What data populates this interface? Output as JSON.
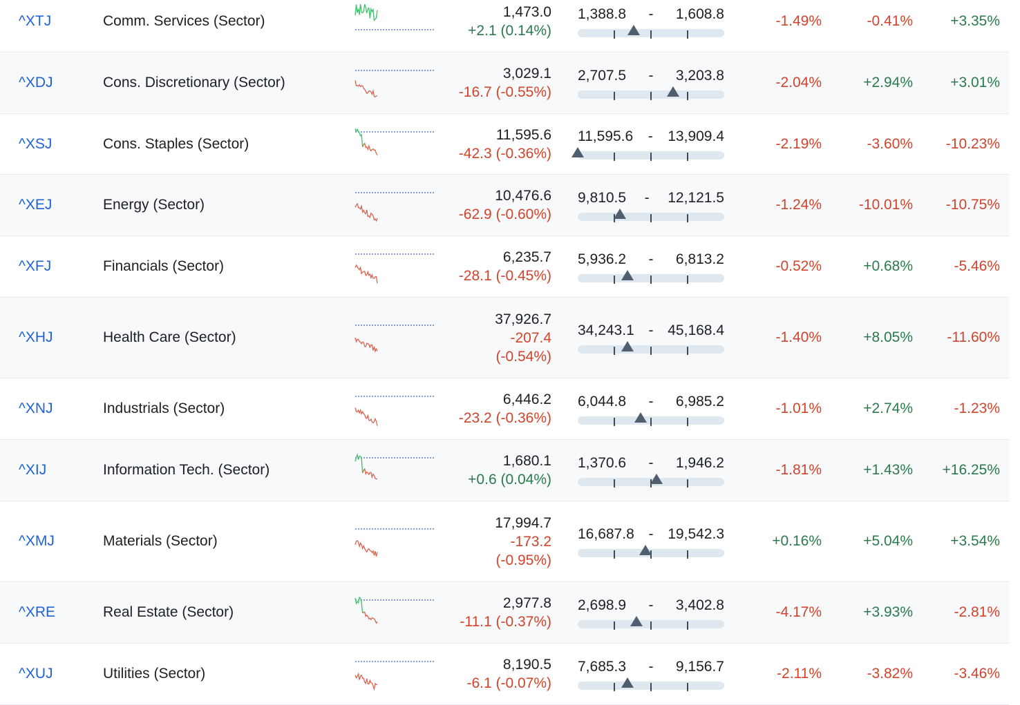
{
  "rows": [
    {
      "symbol": "^XTJ",
      "name": "Comm. Services (Sector)",
      "last": "1,473.0",
      "change": "+2.1 (0.14%)",
      "change_dir": "pos",
      "range_low": "1,388.8",
      "range_sep": "-",
      "range_high": "1,608.8",
      "range_position": 0.38,
      "pct_1": "-1.49%",
      "pct_2": "-0.41%",
      "pct_3": "+3.35%",
      "spark_trend": "up"
    },
    {
      "symbol": "^XDJ",
      "name": "Cons. Discretionary (Sector)",
      "last": "3,029.1",
      "change": "-16.7 (-0.55%)",
      "change_dir": "neg",
      "range_low": "2,707.5",
      "range_sep": "-",
      "range_high": "3,203.8",
      "range_position": 0.65,
      "pct_1": "-2.04%",
      "pct_2": "+2.94%",
      "pct_3": "+3.01%",
      "spark_trend": "down"
    },
    {
      "symbol": "^XSJ",
      "name": "Cons. Staples (Sector)",
      "last": "11,595.6",
      "change": "-42.3 (-0.36%)",
      "change_dir": "neg",
      "range_low": "11,595.6",
      "range_sep": "-",
      "range_high": "13,909.4",
      "range_position": 0.0,
      "pct_1": "-2.19%",
      "pct_2": "-3.60%",
      "pct_3": "-10.23%",
      "spark_trend": "mixed"
    },
    {
      "symbol": "^XEJ",
      "name": "Energy (Sector)",
      "last": "10,476.6",
      "change": "-62.9 (-0.60%)",
      "change_dir": "neg",
      "range_low": "9,810.5",
      "range_sep": "-",
      "range_high": "12,121.5",
      "range_position": 0.29,
      "pct_1": "-1.24%",
      "pct_2": "-10.01%",
      "pct_3": "-10.75%",
      "spark_trend": "down"
    },
    {
      "symbol": "^XFJ",
      "name": "Financials (Sector)",
      "last": "6,235.7",
      "change": "-28.1 (-0.45%)",
      "change_dir": "neg",
      "range_low": "5,936.2",
      "range_sep": "-",
      "range_high": "6,813.2",
      "range_position": 0.34,
      "pct_1": "-0.52%",
      "pct_2": "+0.68%",
      "pct_3": "-5.46%",
      "spark_trend": "down"
    },
    {
      "symbol": "^XHJ",
      "name": "Health Care (Sector)",
      "last": "37,926.7",
      "change": "-207.4 (-0.54%)",
      "change_dir": "neg",
      "range_low": "34,243.1",
      "range_sep": "-",
      "range_high": "45,168.4",
      "range_position": 0.34,
      "pct_1": "-1.40%",
      "pct_2": "+8.05%",
      "pct_3": "-11.60%",
      "spark_trend": "down",
      "tall": true
    },
    {
      "symbol": "^XNJ",
      "name": "Industrials (Sector)",
      "last": "6,446.2",
      "change": "-23.2 (-0.36%)",
      "change_dir": "neg",
      "range_low": "6,044.8",
      "range_sep": "-",
      "range_high": "6,985.2",
      "range_position": 0.43,
      "pct_1": "-1.01%",
      "pct_2": "+2.74%",
      "pct_3": "-1.23%",
      "spark_trend": "down"
    },
    {
      "symbol": "^XIJ",
      "name": "Information Tech. (Sector)",
      "last": "1,680.1",
      "change": "+0.6 (0.04%)",
      "change_dir": "pos",
      "range_low": "1,370.6",
      "range_sep": "-",
      "range_high": "1,946.2",
      "range_position": 0.54,
      "pct_1": "-1.81%",
      "pct_2": "+1.43%",
      "pct_3": "+16.25%",
      "spark_trend": "mixed"
    },
    {
      "symbol": "^XMJ",
      "name": "Materials (Sector)",
      "last": "17,994.7",
      "change": "-173.2 (-0.95%)",
      "change_dir": "neg",
      "range_low": "16,687.8",
      "range_sep": "-",
      "range_high": "19,542.3",
      "range_position": 0.46,
      "pct_1": "+0.16%",
      "pct_2": "+5.04%",
      "pct_3": "+3.54%",
      "spark_trend": "down",
      "tall": true
    },
    {
      "symbol": "^XRE",
      "name": "Real Estate (Sector)",
      "last": "2,977.8",
      "change": "-11.1 (-0.37%)",
      "change_dir": "neg",
      "range_low": "2,698.9",
      "range_sep": "-",
      "range_high": "3,402.8",
      "range_position": 0.4,
      "pct_1": "-4.17%",
      "pct_2": "+3.93%",
      "pct_3": "-2.81%",
      "spark_trend": "mixed"
    },
    {
      "symbol": "^XUJ",
      "name": "Utilities (Sector)",
      "last": "8,190.5",
      "change": "-6.1 (-0.07%)",
      "change_dir": "neg",
      "range_low": "7,685.3",
      "range_sep": "-",
      "range_high": "9,156.7",
      "range_position": 0.34,
      "pct_1": "-2.11%",
      "pct_2": "-3.82%",
      "pct_3": "-3.46%",
      "spark_trend": "down"
    }
  ],
  "colors": {
    "positive": "#2b7a4b",
    "negative": "#d1432b",
    "link": "#1f62d6",
    "spark_green": "#3fbf6a",
    "spark_red": "#d9644e",
    "baseline": "#3d66b8"
  }
}
